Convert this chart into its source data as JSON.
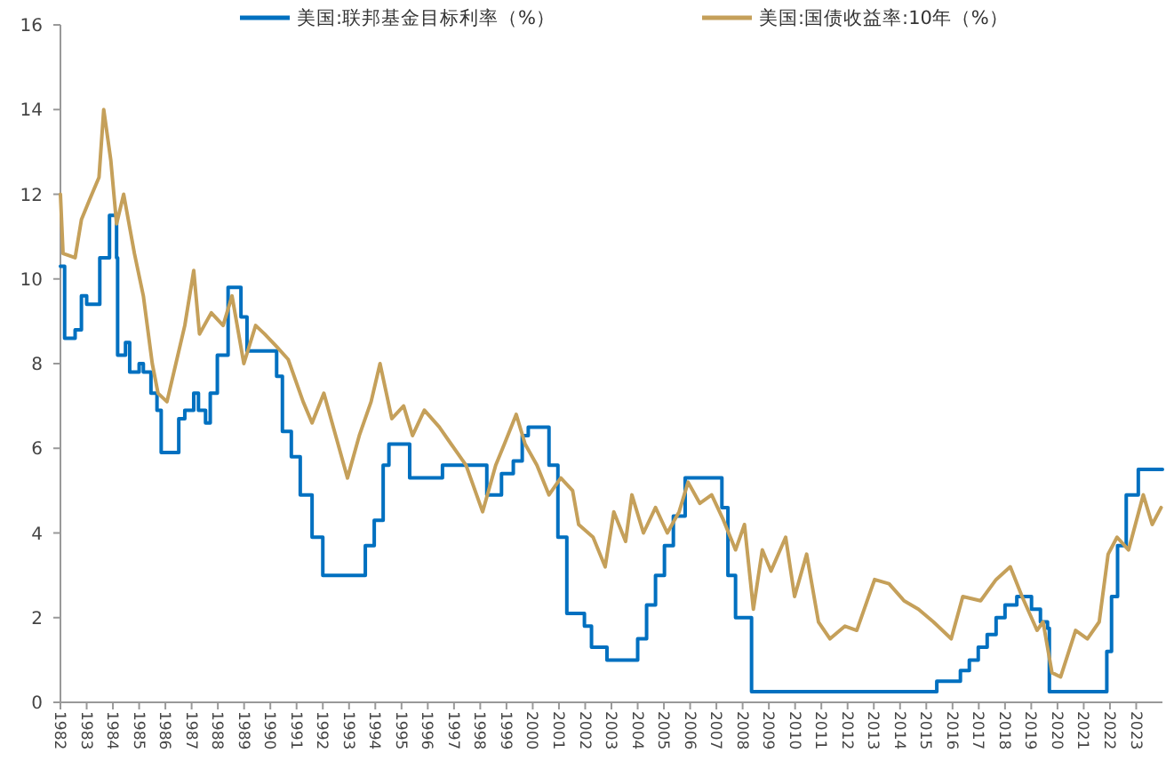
{
  "chart_data": {
    "type": "line",
    "xlim": [
      1982,
      2024
    ],
    "xticks": [
      1982,
      1983,
      1984,
      1985,
      1986,
      1987,
      1988,
      1989,
      1990,
      1991,
      1992,
      1993,
      1994,
      1995,
      1996,
      1997,
      1998,
      1999,
      2000,
      2001,
      2002,
      2003,
      2004,
      2005,
      2006,
      2007,
      2008,
      2009,
      2010,
      2011,
      2012,
      2013,
      2014,
      2015,
      2016,
      2017,
      2018,
      2019,
      2020,
      2021,
      2022,
      2023
    ],
    "ylim": [
      0,
      16
    ],
    "yticks": [
      0,
      2,
      4,
      6,
      8,
      10,
      12,
      14,
      16
    ],
    "grid": false,
    "legend": "top",
    "line_style": "solid",
    "marker": "none",
    "series": [
      {
        "name": "美国:联邦基金目标利率（%）",
        "type": "step",
        "color": "#0070c0",
        "x": [
          1982,
          1982.16,
          1982.56,
          1982.8,
          1983.0,
          1983.5,
          1983.87,
          1984.14,
          1984.18,
          1984.48,
          1984.64,
          1985.0,
          1985.16,
          1985.45,
          1985.68,
          1985.84,
          1986.51,
          1986.74,
          1987.08,
          1987.26,
          1987.53,
          1987.71,
          1987.98,
          1988.39,
          1988.7,
          1988.88,
          1989.11,
          1990.24,
          1990.46,
          1990.8,
          1991.14,
          1991.59,
          1992.0,
          1993.62,
          1993.96,
          1994.3,
          1994.52,
          1995.31,
          1996.56,
          1998.25,
          1998.81,
          1999.26,
          1999.6,
          1999.83,
          2000.62,
          2000.96,
          2001.3,
          2001.97,
          2002.24,
          2002.83,
          2004.0,
          2004.34,
          2004.68,
          2005.02,
          2005.36,
          2005.81,
          2007.21,
          2007.44,
          2007.73,
          2008.34,
          2015.4,
          2016.19,
          2016.3,
          2016.64,
          2016.98,
          2017.32,
          2017.66,
          2018.0,
          2018.45,
          2019.01,
          2019.35,
          2019.62,
          2019.69,
          2021.88,
          2022.06,
          2022.29,
          2022.62,
          2023.08,
          2024
        ],
        "values": [
          10.3,
          8.6,
          8.8,
          9.6,
          9.4,
          10.5,
          11.5,
          10.5,
          8.2,
          8.5,
          7.8,
          8.0,
          7.8,
          7.3,
          6.9,
          5.9,
          6.7,
          6.9,
          7.3,
          6.9,
          6.6,
          7.3,
          8.2,
          9.8,
          9.8,
          9.1,
          8.3,
          7.7,
          6.4,
          5.8,
          4.9,
          3.9,
          3.0,
          3.7,
          4.3,
          5.6,
          6.1,
          5.3,
          5.6,
          4.9,
          5.4,
          5.7,
          6.3,
          6.5,
          5.6,
          3.9,
          2.1,
          1.8,
          1.3,
          1.0,
          1.5,
          2.3,
          3.0,
          3.7,
          4.4,
          5.3,
          4.6,
          3.0,
          2.0,
          0.25,
          0.5,
          0.5,
          0.75,
          1.0,
          1.3,
          1.6,
          2.0,
          2.3,
          2.5,
          2.2,
          1.9,
          1.75,
          0.25,
          1.2,
          2.5,
          3.7,
          4.9,
          5.5,
          5.5
        ]
      },
      {
        "name": "美国:国债收益率:10年（%）",
        "color": "#c5a05a",
        "x": [
          1982,
          1982.1,
          1982.56,
          1982.8,
          1983.13,
          1983.47,
          1983.65,
          1983.92,
          1984.14,
          1984.41,
          1984.82,
          1985.16,
          1985.5,
          1985.72,
          1986.06,
          1986.4,
          1986.74,
          1987.08,
          1987.3,
          1987.75,
          1988.2,
          1988.54,
          1988.99,
          1989.44,
          1989.78,
          1990.24,
          1990.68,
          1991.25,
          1991.59,
          1992.04,
          1992.49,
          1992.94,
          1993.39,
          1993.84,
          1994.18,
          1994.63,
          1995.08,
          1995.42,
          1995.87,
          1996.44,
          1996.89,
          1997.46,
          1998.09,
          1998.59,
          1998.92,
          1999.37,
          1999.71,
          2000.16,
          2000.62,
          2001.07,
          2001.52,
          2001.75,
          2002.3,
          2002.76,
          2003.09,
          2003.54,
          2003.78,
          2004.22,
          2004.68,
          2005.13,
          2005.58,
          2005.92,
          2006.37,
          2006.82,
          2007.27,
          2007.73,
          2008.07,
          2008.41,
          2008.75,
          2009.08,
          2009.64,
          2009.98,
          2010.44,
          2010.89,
          2011.33,
          2011.9,
          2012.35,
          2013.03,
          2013.58,
          2014.15,
          2014.7,
          2015.27,
          2015.95,
          2016.39,
          2017.07,
          2017.66,
          2018.2,
          2018.65,
          2019.22,
          2019.45,
          2019.79,
          2020.12,
          2020.69,
          2021.14,
          2021.59,
          2021.93,
          2022.27,
          2022.71,
          2023.27,
          2023.61,
          2023.95
        ],
        "values": [
          12.0,
          10.6,
          10.5,
          11.4,
          11.9,
          12.4,
          14.0,
          12.8,
          11.3,
          12.0,
          10.6,
          9.6,
          8.0,
          7.3,
          7.1,
          8.0,
          8.9,
          10.2,
          8.7,
          9.2,
          8.9,
          9.6,
          8.0,
          8.9,
          8.7,
          8.4,
          8.1,
          7.1,
          6.6,
          7.3,
          6.3,
          5.3,
          6.3,
          7.1,
          8.0,
          6.7,
          7.0,
          6.3,
          6.9,
          6.5,
          6.1,
          5.6,
          4.5,
          5.6,
          6.1,
          6.8,
          6.1,
          5.6,
          4.9,
          5.3,
          5.0,
          4.2,
          3.9,
          3.2,
          4.5,
          3.8,
          4.9,
          4.0,
          4.6,
          4.0,
          4.5,
          5.2,
          4.7,
          4.9,
          4.3,
          3.6,
          4.2,
          2.2,
          3.6,
          3.1,
          3.9,
          2.5,
          3.5,
          1.9,
          1.5,
          1.8,
          1.7,
          2.9,
          2.8,
          2.4,
          2.2,
          1.9,
          1.5,
          2.5,
          2.4,
          2.9,
          3.2,
          2.5,
          1.7,
          1.9,
          0.7,
          0.6,
          1.7,
          1.5,
          1.9,
          3.5,
          3.9,
          3.6,
          4.9,
          4.2,
          4.6
        ]
      }
    ]
  }
}
